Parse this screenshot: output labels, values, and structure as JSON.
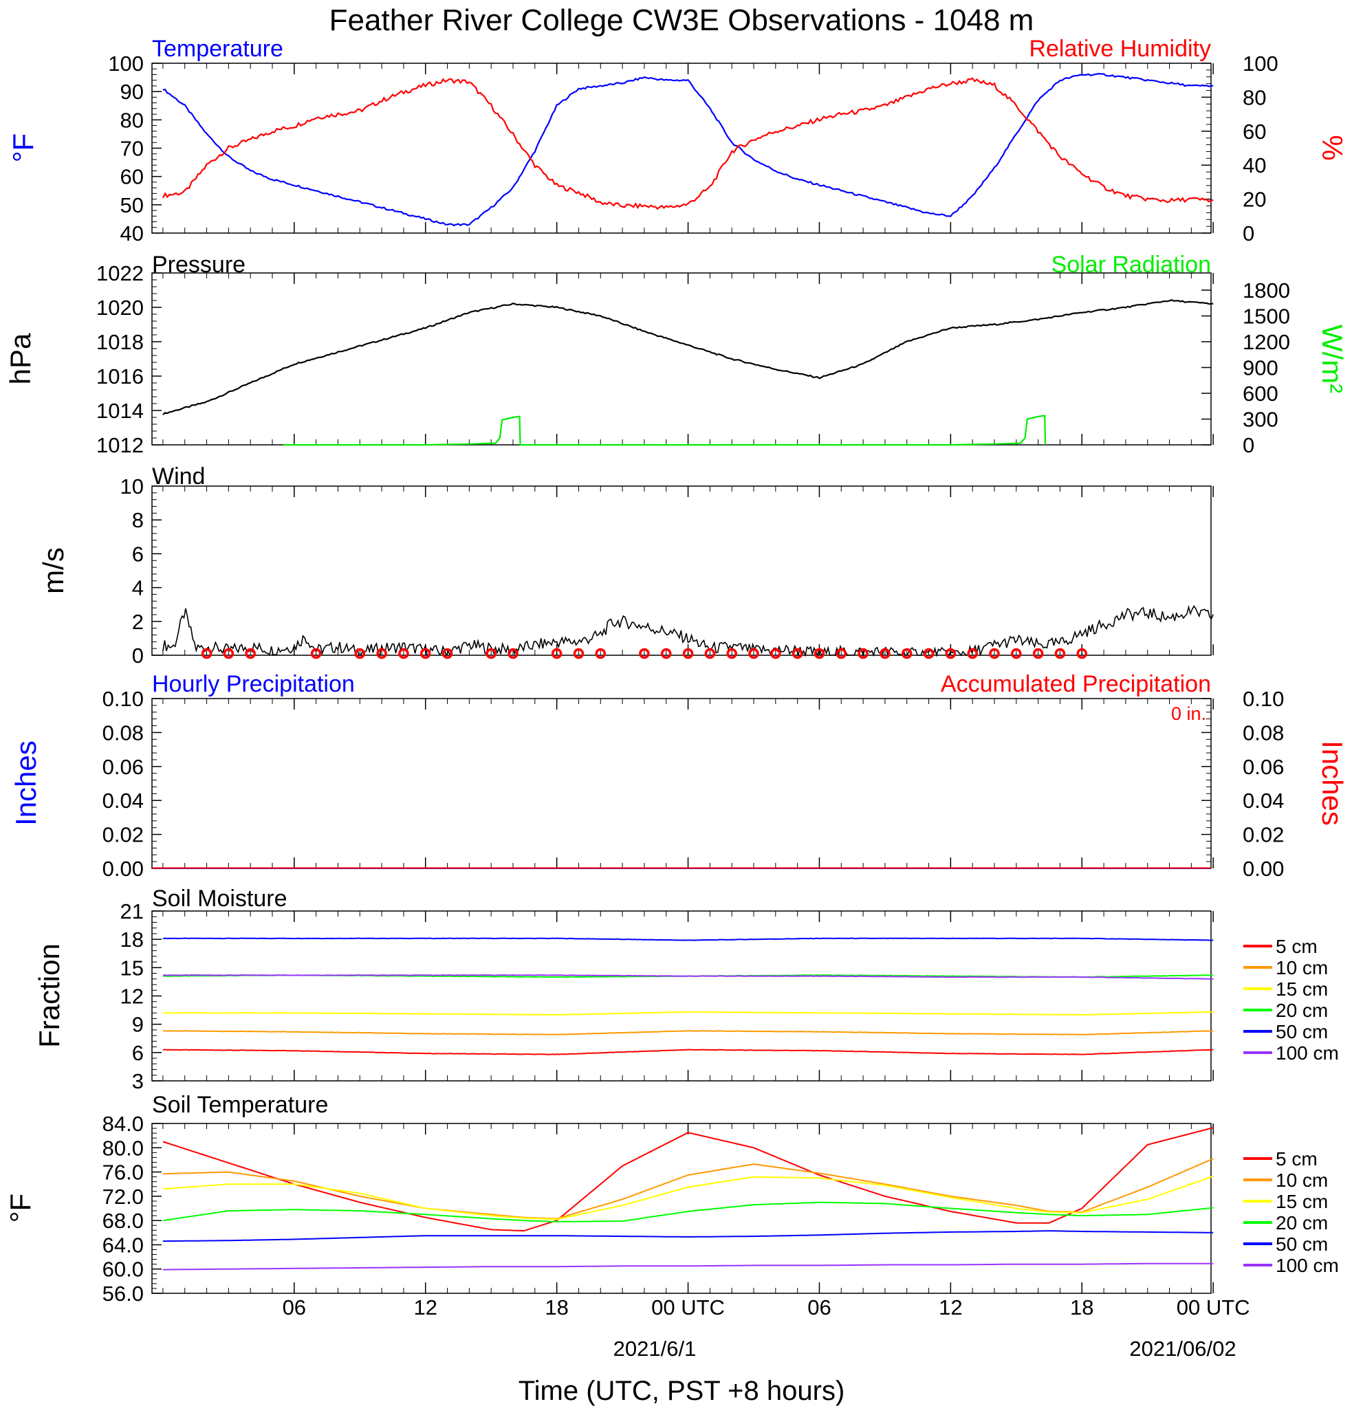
{
  "figure": {
    "title": "Feather River College CW3E Observations - 1048 m",
    "xlabel": "Time (UTC, PST +8 hours)",
    "date_mid": "2021/6/1",
    "date_end": "2021/06/02",
    "x_ticks": [
      "06",
      "12",
      "18",
      "00 UTC",
      "06",
      "12",
      "18",
      "00 UTC"
    ]
  },
  "colors": {
    "temp": "#0000ff",
    "rh": "#ff0000",
    "pressure": "#000000",
    "solar": "#00ff00",
    "wind": "#000000",
    "barb": "#ff0000",
    "s5": "#ff0000",
    "s10": "#ff9900",
    "s15": "#ffff00",
    "s20": "#00ff00",
    "s50": "#0000ff",
    "s100": "#9933ff"
  },
  "chart_data": [
    {
      "type": "line",
      "title_left": "Temperature",
      "title_right": "Relative Humidity",
      "ylabel_left": "°F",
      "ylabel_right": "%",
      "ylim_left": [
        40,
        100
      ],
      "yticks_left": [
        "40",
        "50",
        "60",
        "70",
        "80",
        "90",
        "100"
      ],
      "ylim_right": [
        0,
        100
      ],
      "yticks_right": [
        "0",
        "20",
        "40",
        "60",
        "80",
        "100"
      ],
      "x_hours": [
        0,
        1,
        2,
        3,
        4,
        5,
        6,
        7,
        8,
        9,
        10,
        11,
        12,
        13,
        14,
        15,
        16,
        17,
        18,
        19,
        20,
        21,
        22,
        23,
        24,
        25,
        26,
        27,
        28,
        29,
        30,
        31,
        32,
        33,
        34,
        35,
        36,
        37,
        38,
        39,
        40,
        41,
        42,
        43,
        44,
        45,
        46,
        47,
        48
      ],
      "series": [
        {
          "name": "Temperature",
          "axis": "left",
          "values": [
            91,
            85,
            75,
            67,
            62,
            59,
            57,
            55,
            53,
            51,
            49,
            47,
            45,
            43,
            43,
            49,
            56,
            69,
            85,
            91,
            92,
            93,
            95,
            94,
            94,
            84,
            72,
            66,
            62,
            59,
            57,
            55,
            53,
            51,
            49,
            47,
            46,
            53,
            63,
            75,
            87,
            94,
            96,
            96,
            95,
            94,
            93,
            92,
            92
          ]
        },
        {
          "name": "Relative Humidity",
          "axis": "right",
          "values": [
            22,
            24,
            40,
            50,
            55,
            60,
            63,
            68,
            70,
            72,
            78,
            83,
            87,
            90,
            89,
            75,
            58,
            40,
            28,
            24,
            18,
            16,
            16,
            15,
            17,
            27,
            48,
            55,
            60,
            63,
            67,
            70,
            72,
            75,
            80,
            85,
            88,
            90,
            87,
            75,
            60,
            45,
            35,
            27,
            22,
            20,
            19,
            20,
            19
          ]
        }
      ]
    },
    {
      "type": "line",
      "title_left": "Pressure",
      "title_right": "Solar Radiation",
      "ylabel_left": "hPa",
      "ylabel_right": "W/m²",
      "ylim_left": [
        1012,
        1022
      ],
      "yticks_left": [
        "1012",
        "1014",
        "1016",
        "1018",
        "1020",
        "1022"
      ],
      "ylim_right": [
        0,
        2000
      ],
      "yticks_right": [
        "0",
        "300",
        "600",
        "900",
        "1200",
        "1500",
        "1800"
      ],
      "x_hours": [
        0,
        2,
        4,
        6,
        8,
        10,
        12,
        14,
        16,
        18,
        20,
        22,
        24,
        26,
        28,
        30,
        32,
        34,
        36,
        38,
        40,
        42,
        44,
        46,
        48
      ],
      "series": [
        {
          "name": "Pressure",
          "axis": "left",
          "values": [
            1013.8,
            1014.5,
            1015.6,
            1016.7,
            1017.4,
            1018.1,
            1018.8,
            1019.7,
            1020.2,
            1020.0,
            1019.5,
            1018.6,
            1017.8,
            1017.0,
            1016.4,
            1015.9,
            1016.7,
            1018.0,
            1018.8,
            1019.0,
            1019.3,
            1019.7,
            1020.0,
            1020.4,
            1020.2
          ]
        },
        {
          "name": "Solar Radiation",
          "axis": "right",
          "points": [
            [
              5.5,
              0
            ],
            [
              12,
              0
            ],
            [
              14,
              10
            ],
            [
              15.2,
              20
            ],
            [
              15.4,
              80
            ],
            [
              15.5,
              290
            ],
            [
              16,
              320
            ],
            [
              16.3,
              330
            ],
            [
              16.33,
              0
            ],
            [
              29.5,
              0
            ],
            [
              36,
              0
            ],
            [
              38,
              10
            ],
            [
              39.2,
              20
            ],
            [
              39.4,
              80
            ],
            [
              39.5,
              300
            ],
            [
              40,
              330
            ],
            [
              40.3,
              340
            ],
            [
              40.33,
              0
            ]
          ]
        }
      ]
    },
    {
      "type": "line",
      "title_left": "Wind",
      "ylabel_left": "m/s",
      "ylim_left": [
        0,
        10
      ],
      "yticks_left": [
        "0",
        "2",
        "4",
        "6",
        "8",
        "10"
      ],
      "series": [
        {
          "name": "Wind",
          "points": [
            [
              0,
              0.6
            ],
            [
              0.5,
              0.5
            ],
            [
              1,
              2.6
            ],
            [
              1.5,
              0.4
            ],
            [
              2,
              0.5
            ],
            [
              3,
              0.3
            ],
            [
              4,
              0.5
            ],
            [
              5,
              0.3
            ],
            [
              6,
              0.5
            ],
            [
              6.5,
              1.1
            ],
            [
              7,
              0.3
            ],
            [
              8,
              0.5
            ],
            [
              9,
              0.2
            ],
            [
              10,
              0.4
            ],
            [
              11,
              0.5
            ],
            [
              12,
              0.3
            ],
            [
              13,
              0.2
            ],
            [
              14,
              0.6
            ],
            [
              15,
              0.4
            ],
            [
              16,
              0.3
            ],
            [
              17,
              0.6
            ],
            [
              18,
              0.8
            ],
            [
              19,
              0.8
            ],
            [
              20,
              1.2
            ],
            [
              20.5,
              1.9
            ],
            [
              21,
              2.0
            ],
            [
              22,
              1.7
            ],
            [
              23,
              1.4
            ],
            [
              24,
              1.0
            ],
            [
              25,
              0.4
            ],
            [
              26,
              0.5
            ],
            [
              27,
              0.3
            ],
            [
              28,
              0.3
            ],
            [
              29,
              0.3
            ],
            [
              30,
              0.1
            ],
            [
              31,
              0.2
            ],
            [
              32,
              0.2
            ],
            [
              33,
              0.2
            ],
            [
              34,
              0.1
            ],
            [
              35,
              0.1
            ],
            [
              36,
              0.1
            ],
            [
              37,
              0.2
            ],
            [
              38,
              0.6
            ],
            [
              39,
              0.9
            ],
            [
              40,
              0.6
            ],
            [
              41,
              0.7
            ],
            [
              42,
              1.3
            ],
            [
              43,
              1.8
            ],
            [
              44,
              2.4
            ],
            [
              45,
              2.5
            ],
            [
              46,
              2.2
            ],
            [
              47,
              2.6
            ],
            [
              48,
              2.3
            ]
          ]
        }
      ],
      "barbs_hours": [
        2,
        3,
        4,
        7,
        9,
        10,
        11,
        12,
        13,
        15,
        16,
        18,
        19,
        20,
        22,
        23,
        24,
        25,
        26,
        27,
        28,
        29,
        30,
        31,
        32,
        33,
        34,
        35,
        36,
        37,
        38,
        39,
        40,
        41,
        42
      ]
    },
    {
      "type": "line",
      "title_left": "Hourly Precipitation",
      "title_right": "Accumulated Precipitation",
      "annotation": "0 in.",
      "ylabel_left": "Inches",
      "ylabel_right": "Inches",
      "ylim": [
        0,
        0.1
      ],
      "yticks": [
        "0.00",
        "0.02",
        "0.04",
        "0.06",
        "0.08",
        "0.10"
      ],
      "series": [
        {
          "name": "Hourly Precipitation",
          "values": [
            0,
            0
          ]
        },
        {
          "name": "Accumulated Precipitation",
          "values": [
            0,
            0
          ]
        }
      ]
    },
    {
      "type": "line",
      "title_left": "Soil Moisture",
      "ylabel_left": "Fraction",
      "ylim": [
        3,
        21
      ],
      "yticks": [
        "3",
        "6",
        "9",
        "12",
        "15",
        "18",
        "21"
      ],
      "x_hours": [
        0,
        6,
        12,
        18,
        24,
        30,
        36,
        42,
        48
      ],
      "series": [
        {
          "name": "5 cm",
          "values": [
            6.3,
            6.2,
            5.9,
            5.8,
            6.3,
            6.2,
            5.9,
            5.8,
            6.3
          ]
        },
        {
          "name": "10 cm",
          "values": [
            8.3,
            8.2,
            8.0,
            7.9,
            8.3,
            8.2,
            8.0,
            7.9,
            8.3
          ]
        },
        {
          "name": "15 cm",
          "values": [
            10.2,
            10.2,
            10.1,
            10.0,
            10.3,
            10.2,
            10.1,
            10.0,
            10.3
          ]
        },
        {
          "name": "20 cm",
          "values": [
            14.1,
            14.2,
            14.1,
            14.0,
            14.1,
            14.2,
            14.1,
            14.0,
            14.2
          ]
        },
        {
          "name": "50 cm",
          "values": [
            18.1,
            18.1,
            18.1,
            18.1,
            17.9,
            18.1,
            18.1,
            18.1,
            17.9
          ]
        },
        {
          "name": "100 cm",
          "values": [
            14.2,
            14.2,
            14.2,
            14.2,
            14.1,
            14.1,
            14.0,
            14.0,
            13.8
          ]
        }
      ]
    },
    {
      "type": "line",
      "title_left": "Soil Temperature",
      "ylabel_left": "°F",
      "ylim": [
        56,
        84
      ],
      "yticks": [
        "56.0",
        "60.0",
        "64.0",
        "68.0",
        "72.0",
        "76.0",
        "80.0",
        "84.0"
      ],
      "x_hours": [
        0,
        3,
        6,
        9,
        12,
        15,
        16.5,
        18,
        21,
        24,
        27,
        30,
        33,
        36,
        39,
        40.5,
        42,
        45,
        48
      ],
      "series": [
        {
          "name": "5 cm",
          "values": [
            81,
            77.5,
            74,
            71,
            68.5,
            66.5,
            66.3,
            68,
            77,
            82.5,
            80,
            75.5,
            72,
            69.5,
            67.6,
            67.6,
            70,
            80.5,
            83.3
          ]
        },
        {
          "name": "10 cm",
          "values": [
            75.7,
            76,
            74.5,
            72,
            70,
            69,
            68.5,
            68.3,
            71.5,
            75.5,
            77.3,
            75.8,
            74,
            72,
            70.5,
            69.5,
            69.4,
            73.5,
            78.2
          ]
        },
        {
          "name": "15 cm",
          "values": [
            73.2,
            74,
            74,
            72.5,
            70,
            68.8,
            68.4,
            68.2,
            70.5,
            73.5,
            75.2,
            75,
            73.8,
            71.8,
            70,
            69.4,
            69.3,
            71.5,
            75.3
          ]
        },
        {
          "name": "20 cm",
          "values": [
            68,
            69.6,
            69.8,
            69.6,
            69,
            68.3,
            68,
            67.8,
            67.9,
            69.5,
            70.6,
            71,
            70.8,
            70,
            69.3,
            69,
            68.8,
            69,
            70.1
          ]
        },
        {
          "name": "50 cm",
          "values": [
            64.6,
            64.7,
            64.9,
            65.2,
            65.5,
            65.5,
            65.5,
            65.5,
            65.4,
            65.3,
            65.4,
            65.6,
            65.9,
            66.1,
            66.2,
            66.3,
            66.2,
            66.1,
            66
          ]
        },
        {
          "name": "100 cm",
          "values": [
            59.9,
            60,
            60.1,
            60.2,
            60.3,
            60.4,
            60.4,
            60.4,
            60.5,
            60.5,
            60.6,
            60.6,
            60.7,
            60.7,
            60.8,
            60.8,
            60.8,
            60.9,
            60.9
          ]
        }
      ]
    }
  ],
  "legend": [
    "5 cm",
    "10 cm",
    "15 cm",
    "20 cm",
    "50 cm",
    "100 cm"
  ]
}
